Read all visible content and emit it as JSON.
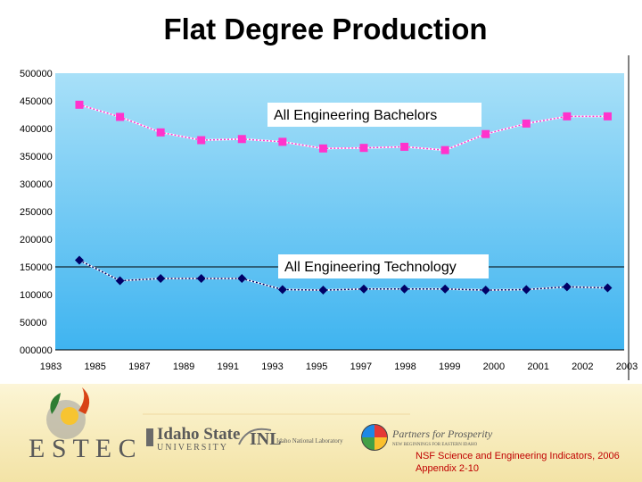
{
  "slide": {
    "title": "Flat Degree Production"
  },
  "chart_data": {
    "type": "line",
    "title": "Flat Degree Production",
    "categories": [
      "1983",
      "1985",
      "1987",
      "1989",
      "1991",
      "1993",
      "1995",
      "1997",
      "1998",
      "1999",
      "2000",
      "2001",
      "2002",
      "2003"
    ],
    "y_tick_labels": [
      "000000",
      "50000",
      "100000",
      "150000",
      "200000",
      "250000",
      "300000",
      "350000",
      "400000",
      "450000",
      "500000"
    ],
    "ylim": [
      0,
      500000
    ],
    "grid": false,
    "reference_line": 150000,
    "series": [
      {
        "name": "All Engineering Bachelors",
        "marker": "square",
        "color": "#ff33cc",
        "values": [
          443000,
          421000,
          393000,
          379000,
          381000,
          376000,
          364000,
          365000,
          367000,
          361000,
          390000,
          409000,
          422000,
          422000
        ]
      },
      {
        "name": "All Engineering Technology",
        "marker": "diamond",
        "color": "#000066",
        "values": [
          162000,
          125000,
          129000,
          129000,
          129000,
          109000,
          108000,
          110000,
          110000,
          110000,
          108000,
          109000,
          114000,
          112000
        ]
      }
    ]
  },
  "logos": {
    "estec": "E S T E C",
    "isu_line1": "Idaho State",
    "isu_line2": "UNIVERSITY",
    "inl_mark": "INL",
    "inl_name": "Idaho National Laboratory",
    "partners_name": "Partners for Prosperity",
    "partners_tagline": "NEW BEGINNINGS FOR EASTERN IDAHO"
  },
  "source": {
    "line1": "NSF Science and Engineering Indicators, 2006",
    "line2": "Appendix 2-10"
  },
  "colors": {
    "plot_top": "#a8e0f8",
    "plot_bottom": "#3fb4f0"
  }
}
